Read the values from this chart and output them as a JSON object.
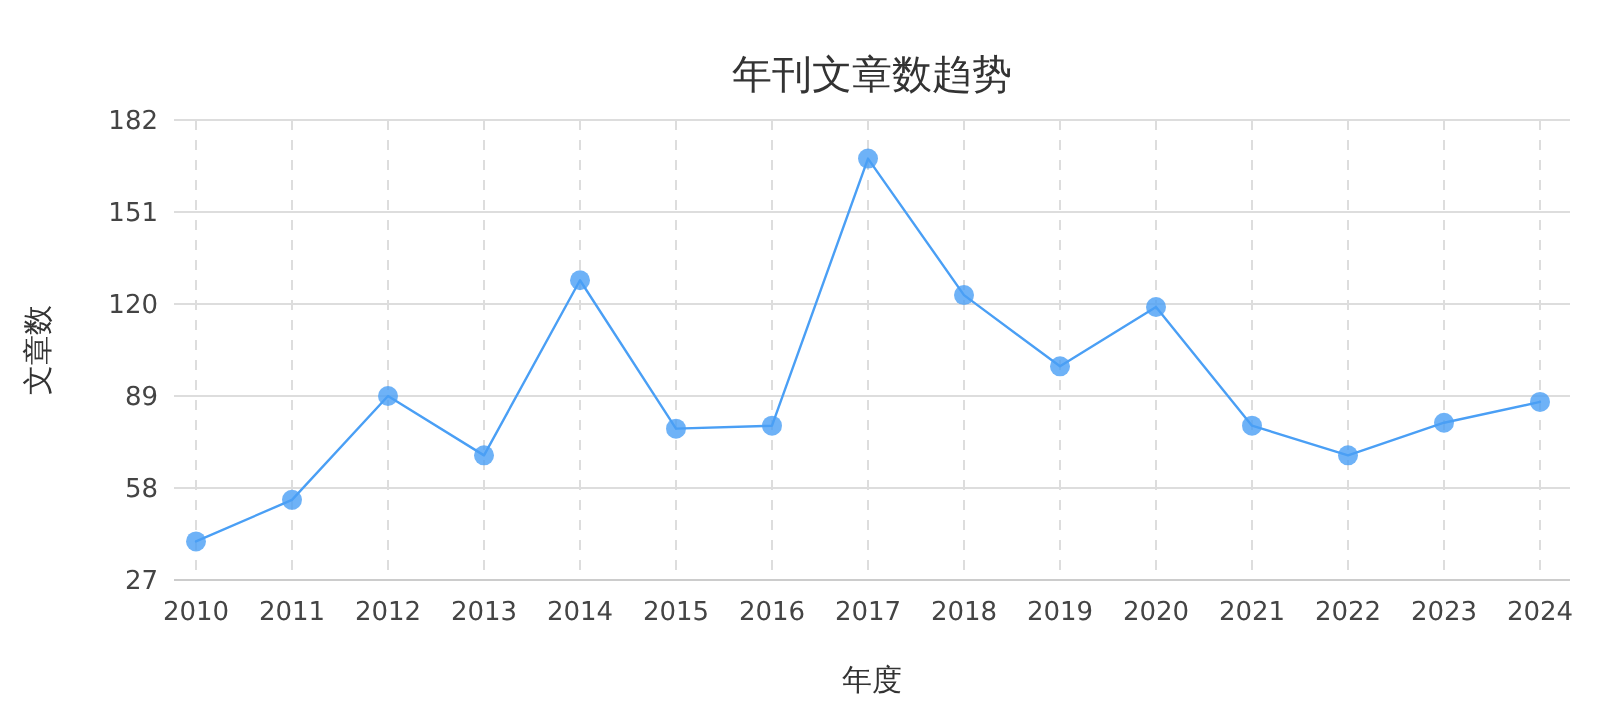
{
  "chart_data": {
    "type": "line",
    "title": "年刊文章数趋势",
    "xlabel": "年度",
    "ylabel": "文章数",
    "categories": [
      "2010",
      "2011",
      "2012",
      "2013",
      "2014",
      "2015",
      "2016",
      "2017",
      "2018",
      "2019",
      "2020",
      "2021",
      "2022",
      "2023",
      "2024"
    ],
    "series": [
      {
        "color": "#4a9ff5",
        "values": [
          40,
          54,
          89,
          69,
          128,
          78,
          79,
          169,
          123,
          99,
          119,
          79,
          69,
          80,
          87
        ]
      }
    ],
    "ylim": [
      27,
      182
    ],
    "yticks": [
      27,
      58,
      89,
      120,
      151,
      182
    ],
    "grid": true,
    "marker": "circle",
    "line_style": "solid"
  }
}
